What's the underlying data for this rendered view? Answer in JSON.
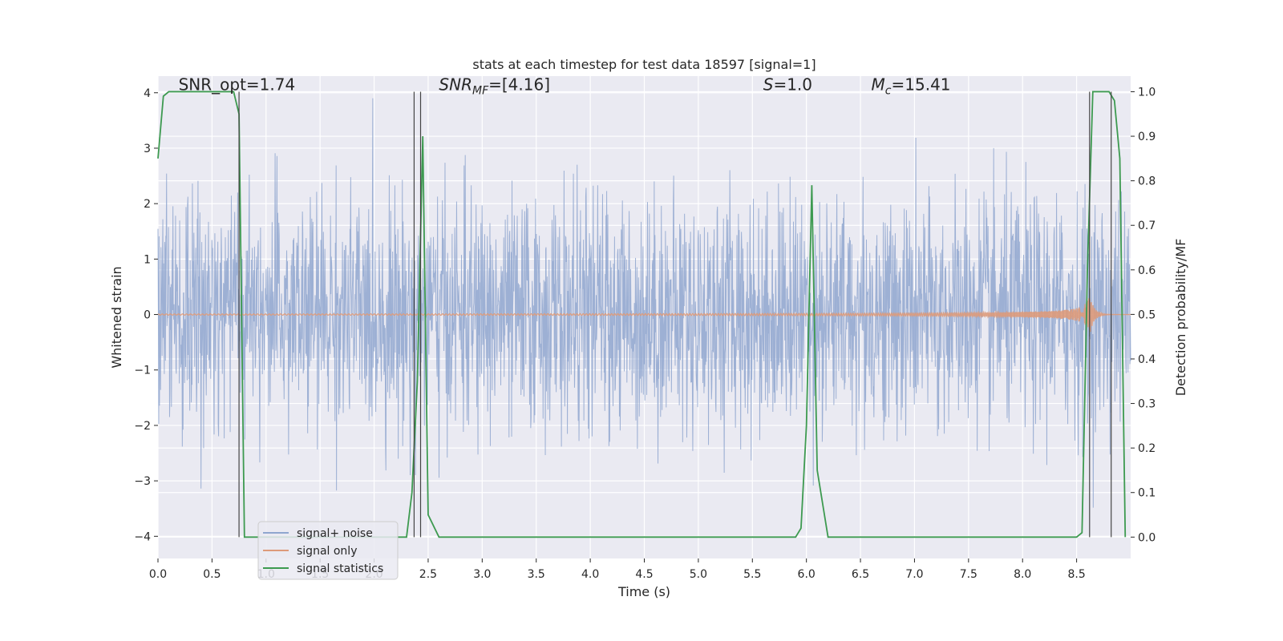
{
  "chart_data": {
    "type": "line",
    "title": "stats at each timestep for test data 18597 [signal=1]",
    "xlabel": "Time (s)",
    "ylabel": "Whitened strain",
    "y2label": "Detection probability/MF",
    "xlim": [
      0.0,
      9.0
    ],
    "ylim": [
      -4.4,
      4.3
    ],
    "y2lim": [
      -0.048,
      1.035
    ],
    "x_ticks": [
      0.0,
      0.5,
      1.0,
      1.5,
      2.0,
      2.5,
      3.0,
      3.5,
      4.0,
      4.5,
      5.0,
      5.5,
      6.0,
      6.5,
      7.0,
      7.5,
      8.0,
      8.5
    ],
    "x_tick_labels": [
      "0.0",
      "0.5",
      "1.0",
      "1.5",
      "2.0",
      "2.5",
      "3.0",
      "3.5",
      "4.0",
      "4.5",
      "5.0",
      "5.5",
      "6.0",
      "6.5",
      "7.0",
      "7.5",
      "8.0",
      "8.5"
    ],
    "y_ticks": [
      4,
      3,
      2,
      1,
      0,
      -1,
      -2,
      -3,
      -4
    ],
    "y_tick_labels": [
      "4",
      "3",
      "2",
      "1",
      "0",
      "−1",
      "−2",
      "−3",
      "−4"
    ],
    "y2_ticks": [
      1.0,
      0.9,
      0.8,
      0.7,
      0.6,
      0.5,
      0.4,
      0.3,
      0.2,
      0.1,
      0.0
    ],
    "y2_tick_labels": [
      "1.0",
      "0.9",
      "0.8",
      "0.7",
      "0.6",
      "0.5",
      "0.4",
      "0.3",
      "0.2",
      "0.1",
      "0.0"
    ],
    "annotations": [
      {
        "text": "SNR_opt=1.74",
        "x": 0.19,
        "y": 4.05
      },
      {
        "text": "SNR_MF=[4.16]",
        "x": 2.6,
        "y": 4.05
      },
      {
        "text": "S=1.0",
        "x": 5.6,
        "y": 4.05
      },
      {
        "text": "M_c=15.41",
        "x": 6.6,
        "y": 4.05
      }
    ],
    "legend": {
      "position": "lower-left",
      "entries": [
        {
          "label": "signal+ noise",
          "color": "#8fa6cf"
        },
        {
          "label": "signal only",
          "color": "#dd9a7a"
        },
        {
          "label": "signal statistics",
          "color": "#3d9a50"
        }
      ]
    },
    "series": [
      {
        "name": "signal+ noise",
        "color": "#8fa6cf",
        "axis": "left",
        "kind": "noise",
        "range": [
          -4.0,
          3.9
        ]
      },
      {
        "name": "signal only",
        "color": "#dd9a7a",
        "axis": "left",
        "kind": "chirp",
        "peak_time": 8.62,
        "peak_amplitude": 0.38
      },
      {
        "name": "signal statistics",
        "color": "#3d9a50",
        "axis": "right",
        "x": [
          0.0,
          0.05,
          0.1,
          0.15,
          0.2,
          0.3,
          0.4,
          0.5,
          0.6,
          0.65,
          0.7,
          0.75,
          0.8,
          0.85,
          1.0,
          1.5,
          2.0,
          2.3,
          2.35,
          2.4,
          2.45,
          2.5,
          2.6,
          3.0,
          4.0,
          5.0,
          5.9,
          5.95,
          6.0,
          6.05,
          6.1,
          6.2,
          6.5,
          7.0,
          7.5,
          8.0,
          8.5,
          8.55,
          8.6,
          8.65,
          8.7,
          8.75,
          8.8,
          8.85,
          8.9,
          8.95
        ],
        "y": [
          0.85,
          0.99,
          1.0,
          1.0,
          1.0,
          1.0,
          1.0,
          1.0,
          1.0,
          1.0,
          1.0,
          0.95,
          0.0,
          0.0,
          0.0,
          0.0,
          0.0,
          0.0,
          0.1,
          0.35,
          0.9,
          0.05,
          0.0,
          0.0,
          0.0,
          0.0,
          0.0,
          0.02,
          0.25,
          0.79,
          0.15,
          0.0,
          0.0,
          0.0,
          0.0,
          0.0,
          0.0,
          0.01,
          0.6,
          1.0,
          1.0,
          1.0,
          1.0,
          0.98,
          0.85,
          0.0
        ]
      }
    ],
    "vlines": [
      0.75,
      2.37,
      2.43,
      8.62,
      8.82
    ]
  }
}
